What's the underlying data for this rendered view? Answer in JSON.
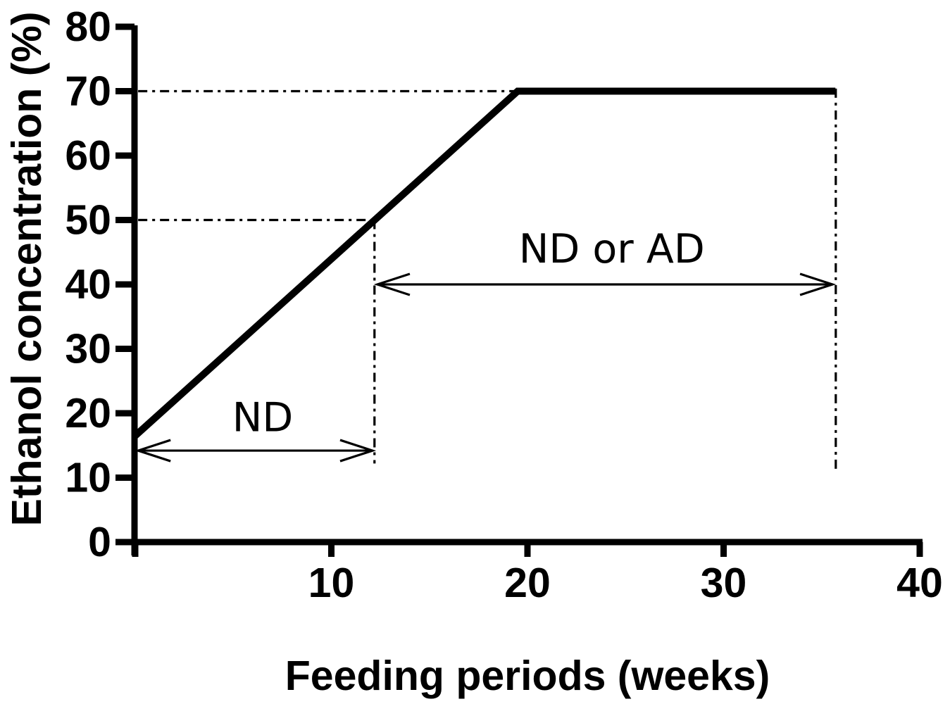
{
  "figure": {
    "background_color": "#ffffff",
    "ink_color": "#000000"
  },
  "chart_data": {
    "type": "line",
    "title": "",
    "xlabel": "Feeding periods (weeks)",
    "ylabel": "Ethanol concentration (%)",
    "xlim": [
      0,
      40
    ],
    "ylim": [
      0,
      80
    ],
    "grid": "off",
    "legend": "none",
    "xticks": [
      0,
      10,
      20,
      30,
      40
    ],
    "xtick_labels": [
      "",
      "10",
      "20",
      "30",
      "40"
    ],
    "yticks": [
      0,
      10,
      20,
      30,
      40,
      50,
      60,
      70,
      80
    ],
    "ytick_labels": [
      "0",
      "10",
      "20",
      "30",
      "40",
      "50",
      "60",
      "70",
      "80"
    ],
    "series": [
      {
        "name": "ethanol-concentration",
        "points": [
          [
            0,
            16.5
          ],
          [
            19.5,
            70
          ],
          [
            35.7,
            70
          ]
        ]
      }
    ],
    "reference_lines": [
      {
        "id": "h-70",
        "style": "dash-dot",
        "points": [
          [
            0.15,
            70
          ],
          [
            19.5,
            70
          ]
        ]
      },
      {
        "id": "h-50",
        "style": "dash-dot",
        "points": [
          [
            0.15,
            50
          ],
          [
            12.2,
            50
          ]
        ]
      },
      {
        "id": "v-week12",
        "style": "dash-dot",
        "points": [
          [
            12.2,
            50
          ],
          [
            12.2,
            12.2
          ]
        ]
      },
      {
        "id": "v-week36",
        "style": "dash-dot",
        "points": [
          [
            35.72,
            70.4
          ],
          [
            35.72,
            10.7
          ]
        ]
      }
    ],
    "arrows": [
      {
        "id": "nd-span",
        "x1": 0.15,
        "x2": 12.1,
        "y": 14.2,
        "double_headed": true
      },
      {
        "id": "nd-or-ad-span",
        "x1": 12.35,
        "x2": 35.55,
        "y": 40,
        "double_headed": true
      }
    ],
    "annotations": [
      {
        "id": "nd-label",
        "text": "ND",
        "x": 6.5,
        "y": 17.2
      },
      {
        "id": "nd-or-ad-label",
        "text": "ND or AD",
        "x": 24.3,
        "y": 43.4
      }
    ]
  }
}
